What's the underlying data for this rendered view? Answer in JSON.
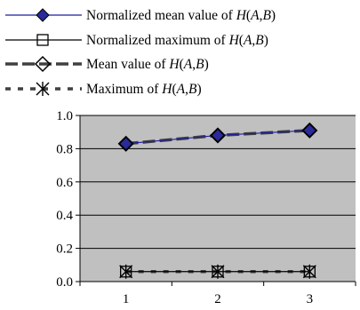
{
  "chart_data": {
    "type": "line",
    "x": [
      1,
      2,
      3
    ],
    "ylim": [
      0.0,
      1.0
    ],
    "yticks": [
      "0.0",
      "0.2",
      "0.4",
      "0.6",
      "0.8",
      "1.0"
    ],
    "xticks": [
      "1",
      "2",
      "3"
    ],
    "grid": "horizontal",
    "legend_position": "top",
    "plot_background": "#c0c0c0",
    "series": [
      {
        "name": "Normalized mean value of H(A,B)",
        "name_parts": [
          "Normalized mean value of ",
          "H",
          "(",
          "A",
          ",",
          "B",
          ")"
        ],
        "values": [
          0.83,
          0.88,
          0.91
        ],
        "color": "#1f1fa0",
        "marker": "filled-diamond",
        "line": "solid-thin"
      },
      {
        "name": "Normalized maximum of H(A,B)",
        "name_parts": [
          "Normalized maximum of ",
          "H",
          "(",
          "A",
          ",",
          "B",
          ")"
        ],
        "values": [
          0.06,
          0.06,
          0.06
        ],
        "color": "#000000",
        "marker": "open-square",
        "line": "solid-thin"
      },
      {
        "name": "Mean value of H(A,B)",
        "name_parts": [
          "Mean value of ",
          "H",
          "(",
          "A",
          ",",
          "B",
          ")"
        ],
        "values": [
          0.83,
          0.88,
          0.91
        ],
        "color": "#404040",
        "marker": "open-diamond",
        "line": "long-dash-thick"
      },
      {
        "name": "Maximum of H(A,B)",
        "name_parts": [
          "Maximum of ",
          "H",
          "(",
          "A",
          ",",
          "B",
          ")"
        ],
        "values": [
          0.06,
          0.06,
          0.06
        ],
        "color": "#404040",
        "marker": "asterisk-cross",
        "line": "short-dash-thick"
      }
    ]
  }
}
